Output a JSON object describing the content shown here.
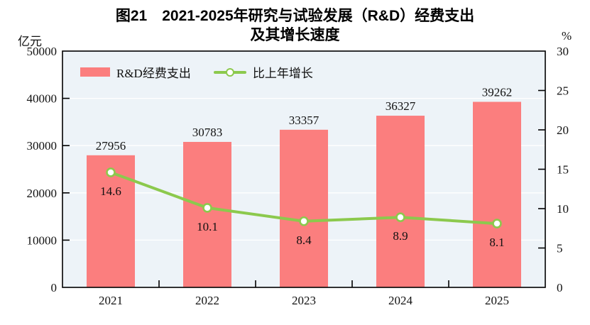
{
  "title": {
    "line1": "图21　2021-2025年研究与试验发展（R&D）经费支出",
    "line2": "及其增长速度"
  },
  "colors": {
    "bar": "#FB7E7E",
    "line": "#8CC94D",
    "marker_fill": "#FFFFFF",
    "plot_bg": "#EDF3F8",
    "grid": "#FFFFFF",
    "axis": "#000000",
    "text": "#111111"
  },
  "chart_data": {
    "type": "bar",
    "title": "图21 2021-2025年研究与试验发展（R&D）经费支出及其增长速度",
    "categories": [
      "2021",
      "2022",
      "2023",
      "2024",
      "2025"
    ],
    "series": [
      {
        "name": "R&D经费支出",
        "type": "bar",
        "axis": "left",
        "values": [
          27956,
          30783,
          33357,
          36327,
          39262
        ]
      },
      {
        "name": "比上年增长",
        "type": "line",
        "axis": "right",
        "values": [
          14.6,
          10.1,
          8.4,
          8.9,
          8.1
        ]
      }
    ],
    "left_axis": {
      "label": "亿元",
      "min": 0,
      "max": 50000,
      "step": 10000,
      "ticks": [
        0,
        10000,
        20000,
        30000,
        40000,
        50000
      ]
    },
    "right_axis": {
      "label": "%",
      "min": 0,
      "max": 30,
      "step": 5,
      "ticks": [
        0,
        5,
        10,
        15,
        20,
        25,
        30
      ]
    },
    "grid": true,
    "data_labels": true,
    "legend_position": "top-left-inside"
  }
}
